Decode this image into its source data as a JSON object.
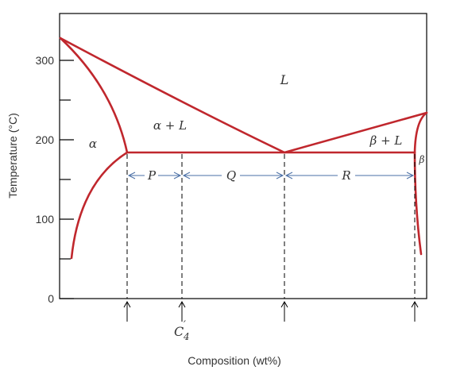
{
  "chart_data": {
    "type": "diagram",
    "ylabel": "Temperature (°C)",
    "xlabel": "Composition (wt%)",
    "y_ticks": [
      "0",
      "100",
      "200",
      "300"
    ],
    "regions": {
      "liquid": "L",
      "alpha": "α",
      "alpha_liquid": "α + L",
      "beta_liquid": "β + L",
      "beta": "β"
    },
    "segments": {
      "p": "P",
      "q": "Q",
      "r": "R"
    },
    "composition_label": "C",
    "composition_sub": "4",
    "composition_prime": "′",
    "colors": {
      "phase_boundary": "#c0272d",
      "axes": "#000000"
    }
  }
}
